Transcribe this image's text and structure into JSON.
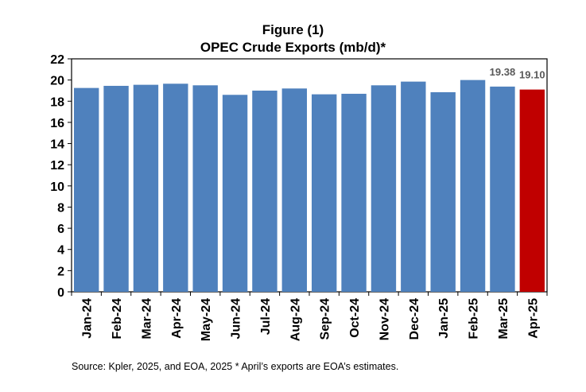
{
  "figure_label": "Figure (1)",
  "chart_data": {
    "type": "bar",
    "title": "OPEC Crude Exports (mb/d)*",
    "xlabel": "",
    "ylabel": "",
    "ylim": [
      0,
      22
    ],
    "yticks": [
      0,
      2,
      4,
      6,
      8,
      10,
      12,
      14,
      16,
      18,
      20,
      22
    ],
    "grid": false,
    "categories": [
      "Jan-24",
      "Feb-24",
      "Mar-24",
      "Apr-24",
      "May-24",
      "Jun-24",
      "Jul-24",
      "Aug-24",
      "Sep-24",
      "Oct-24",
      "Nov-24",
      "Dec-24",
      "Jan-25",
      "Feb-25",
      "Mar-25",
      "Apr-25"
    ],
    "values": [
      19.25,
      19.45,
      19.55,
      19.65,
      19.5,
      18.6,
      19.0,
      19.2,
      18.65,
      18.7,
      19.5,
      19.85,
      18.85,
      20.0,
      19.38,
      19.1
    ],
    "data_labels": [
      {
        "category": "Mar-25",
        "text": "19.38"
      },
      {
        "category": "Apr-25",
        "text": "19.10"
      }
    ],
    "colors": {
      "bar": "#4f81bd",
      "highlight": "#c00000",
      "frame": "#000000"
    },
    "highlight_category": "Apr-25"
  },
  "source_note": "Source: Kpler, 2025, and EOA, 2025   * April’s exports are EOA’s estimates."
}
